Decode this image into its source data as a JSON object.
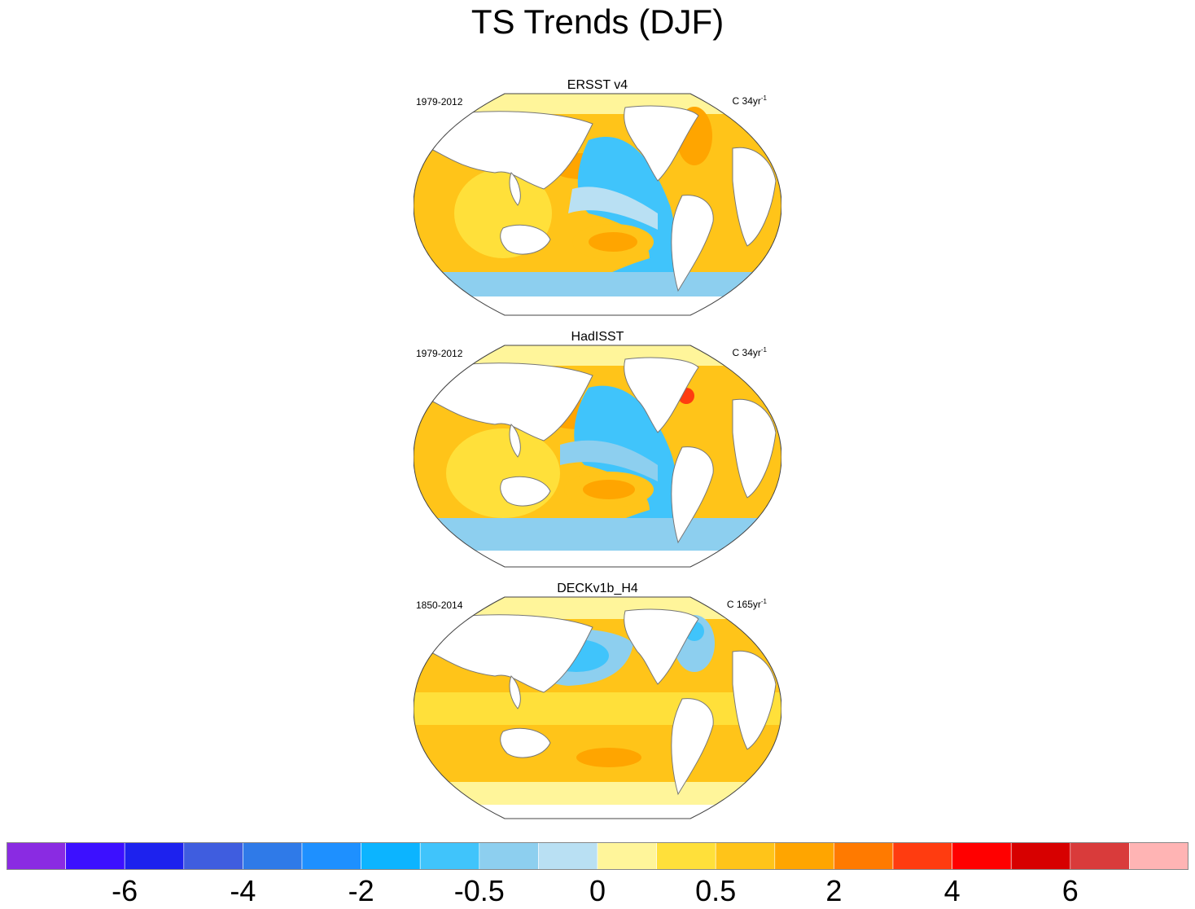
{
  "title": "TS Trends (DJF)",
  "panels": [
    {
      "dataset": "ERSST v4",
      "period": "1979-2012",
      "units_prefix": "C 34yr",
      "units_exp": "-1"
    },
    {
      "dataset": "HadISST",
      "period": "1979-2012",
      "units_prefix": "C 34yr",
      "units_exp": "-1"
    },
    {
      "dataset": "DECKv1b_H4",
      "period": "1850-2014",
      "units_prefix": "C 165yr",
      "units_exp": "-1"
    }
  ],
  "colorbar": {
    "colors": [
      "#8a2be2",
      "#3c10ff",
      "#1d22ee",
      "#3f5ddf",
      "#2f7ae8",
      "#1e90ff",
      "#0cb4ff",
      "#40c4fb",
      "#8dcfef",
      "#b9e0f3",
      "#fff59a",
      "#ffe03a",
      "#ffc419",
      "#ffa500",
      "#ff7a00",
      "#ff3c10",
      "#ff0000",
      "#d70000",
      "#d93b3b",
      "#ffb4b4"
    ],
    "labels": [
      "-6",
      "-4",
      "-2",
      "-0.5",
      "0",
      "0.5",
      "2",
      "4",
      "6"
    ]
  }
}
